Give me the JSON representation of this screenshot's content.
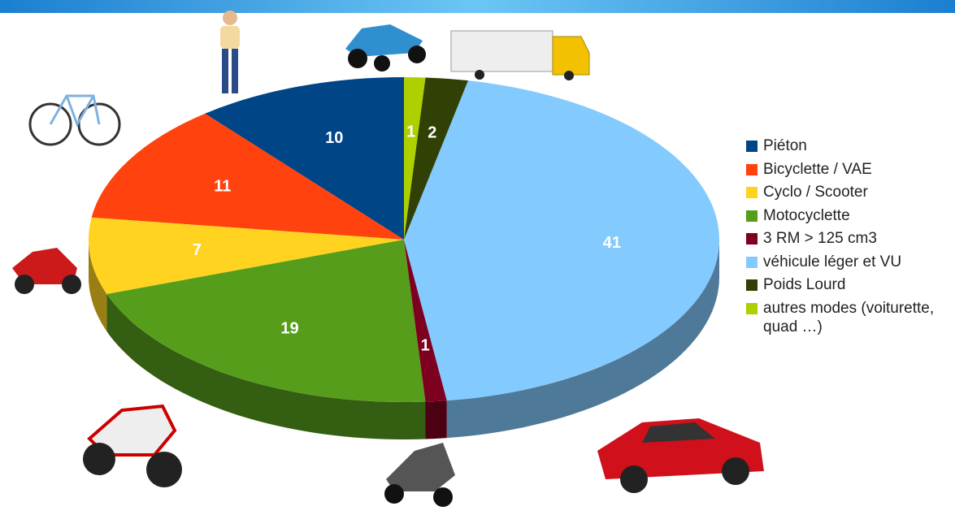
{
  "chart_data": {
    "type": "pie",
    "categories": [
      "Piéton",
      "Bicyclette / VAE",
      "Cyclo / Scooter",
      "Motocyclette",
      "3 RM > 125 cm3",
      "véhicule léger et VU",
      "Poids Lourd",
      "autres modes (voiturette, quad …)"
    ],
    "values": [
      10,
      11,
      7,
      19,
      1,
      41,
      2,
      1
    ],
    "colors": [
      "#004586",
      "#ff420e",
      "#ffd320",
      "#579d1c",
      "#7e0021",
      "#83caff",
      "#314004",
      "#aecf00"
    ],
    "legend": "right"
  }
}
